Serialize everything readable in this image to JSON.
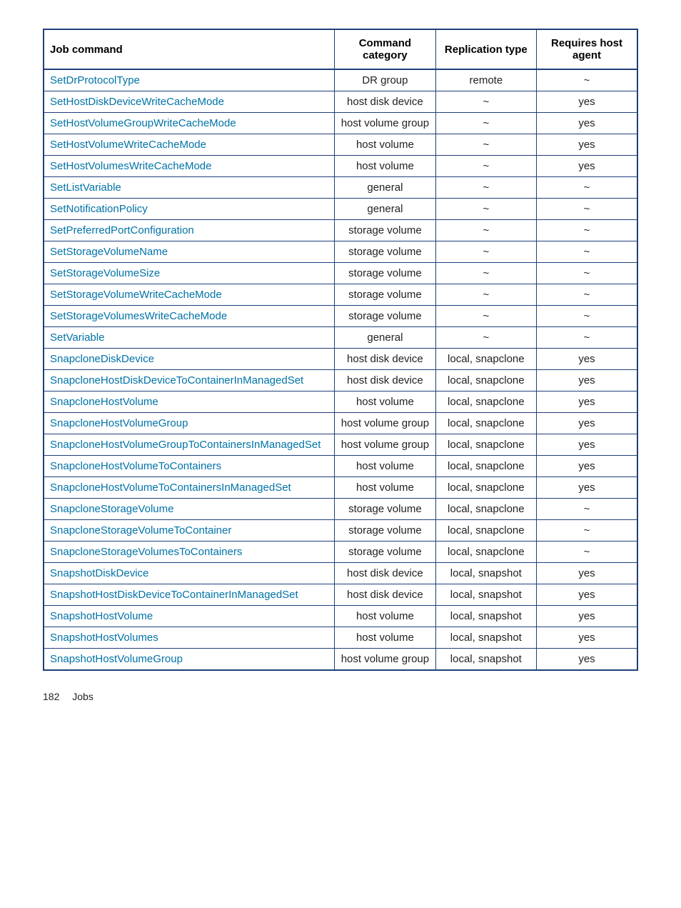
{
  "table": {
    "border_color": "#1f3f7a",
    "link_color": "#0073a8",
    "text_color": "#222222",
    "background_color": "#ffffff",
    "header_fontsize": 15,
    "cell_fontsize": 15,
    "columns": [
      {
        "label": "Job command",
        "width_pct": 49,
        "align": "left"
      },
      {
        "label": "Command category",
        "width_pct": 17,
        "align": "center"
      },
      {
        "label": "Replication type",
        "width_pct": 17,
        "align": "center"
      },
      {
        "label": "Requires host agent",
        "width_pct": 17,
        "align": "center"
      }
    ],
    "rows": [
      {
        "command": "SetDrProtocolType",
        "category": "DR group",
        "replication": "remote",
        "requires": "~"
      },
      {
        "command": "SetHostDiskDeviceWriteCacheMode",
        "category": "host disk device",
        "replication": "~",
        "requires": "yes"
      },
      {
        "command": "SetHostVolumeGroupWriteCacheMode",
        "category": "host volume group",
        "replication": "~",
        "requires": "yes"
      },
      {
        "command": "SetHostVolumeWriteCacheMode",
        "category": "host volume",
        "replication": "~",
        "requires": "yes"
      },
      {
        "command": "SetHostVolumesWriteCacheMode",
        "category": "host volume",
        "replication": "~",
        "requires": "yes"
      },
      {
        "command": "SetListVariable",
        "category": "general",
        "replication": "~",
        "requires": "~"
      },
      {
        "command": "SetNotificationPolicy",
        "category": "general",
        "replication": "~",
        "requires": "~"
      },
      {
        "command": "SetPreferredPortConfiguration",
        "category": "storage volume",
        "replication": "~",
        "requires": "~"
      },
      {
        "command": "SetStorageVolumeName",
        "category": "storage volume",
        "replication": "~",
        "requires": "~"
      },
      {
        "command": "SetStorageVolumeSize",
        "category": "storage volume",
        "replication": "~",
        "requires": "~"
      },
      {
        "command": "SetStorageVolumeWriteCacheMode",
        "category": "storage volume",
        "replication": "~",
        "requires": "~"
      },
      {
        "command": "SetStorageVolumesWriteCacheMode",
        "category": "storage volume",
        "replication": "~",
        "requires": "~"
      },
      {
        "command": "SetVariable",
        "category": "general",
        "replication": "~",
        "requires": "~"
      },
      {
        "command": "SnapcloneDiskDevice",
        "category": "host disk device",
        "replication": "local, snapclone",
        "requires": "yes"
      },
      {
        "command": "SnapcloneHostDiskDeviceToContainerInManagedSet",
        "category": "host disk device",
        "replication": "local, snapclone",
        "requires": "yes"
      },
      {
        "command": "SnapcloneHostVolume",
        "category": "host volume",
        "replication": "local, snapclone",
        "requires": "yes"
      },
      {
        "command": "SnapcloneHostVolumeGroup",
        "category": "host volume group",
        "replication": "local, snapclone",
        "requires": "yes"
      },
      {
        "command": "SnapcloneHostVolumeGroupToContainersInManagedSet",
        "category": "host volume group",
        "replication": "local, snapclone",
        "requires": "yes"
      },
      {
        "command": "SnapcloneHostVolumeToContainers",
        "category": "host volume",
        "replication": "local, snapclone",
        "requires": "yes"
      },
      {
        "command": "SnapcloneHostVolumeToContainersInManagedSet",
        "category": "host volume",
        "replication": "local, snapclone",
        "requires": "yes"
      },
      {
        "command": "SnapcloneStorageVolume",
        "category": "storage volume",
        "replication": "local, snapclone",
        "requires": "~"
      },
      {
        "command": "SnapcloneStorageVolumeToContainer",
        "category": "storage volume",
        "replication": "local, snapclone",
        "requires": "~"
      },
      {
        "command": "SnapcloneStorageVolumesToContainers",
        "category": "storage volume",
        "replication": "local, snapclone",
        "requires": "~"
      },
      {
        "command": "SnapshotDiskDevice",
        "category": "host disk device",
        "replication": "local, snapshot",
        "requires": "yes"
      },
      {
        "command": "SnapshotHostDiskDeviceToContainerInManagedSet",
        "category": "host disk device",
        "replication": "local, snapshot",
        "requires": "yes"
      },
      {
        "command": "SnapshotHostVolume",
        "category": "host volume",
        "replication": "local, snapshot",
        "requires": "yes"
      },
      {
        "command": "SnapshotHostVolumes",
        "category": "host volume",
        "replication": "local, snapshot",
        "requires": "yes"
      },
      {
        "command": "SnapshotHostVolumeGroup",
        "category": "host volume group",
        "replication": "local, snapshot",
        "requires": "yes"
      }
    ]
  },
  "footer": {
    "page_number": "182",
    "section": "Jobs"
  }
}
